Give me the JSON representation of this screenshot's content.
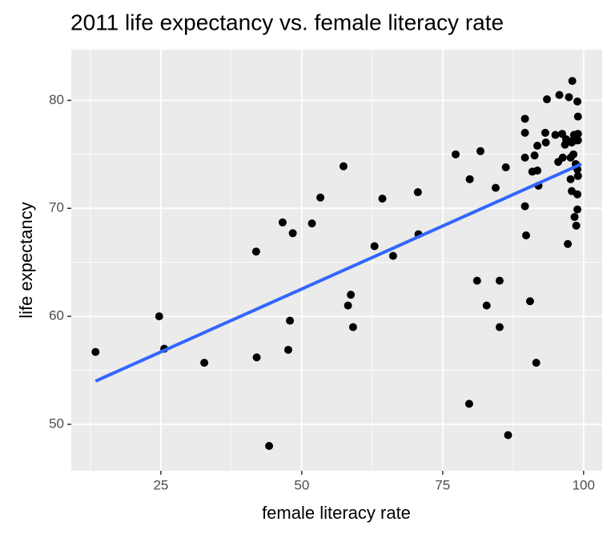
{
  "chart_data": {
    "type": "scatter",
    "title": "2011 life expectancy vs. female literacy rate",
    "x_label": "female literacy rate",
    "y_label": "life expectancy",
    "xlim": [
      9.1,
      103.3
    ],
    "ylim": [
      45.7,
      84.7
    ],
    "xticks": [
      25,
      50,
      75,
      100
    ],
    "yticks": [
      50,
      60,
      70,
      80
    ],
    "minor_xticks": [
      12.5,
      37.5,
      62.5,
      87.5
    ],
    "minor_yticks": [
      45,
      55,
      65,
      75
    ],
    "grid": true,
    "background": "#ebebeb",
    "color": "#000000",
    "x": [
      13.4,
      24.7,
      25.6,
      32.7,
      41.9,
      42.0,
      44.2,
      46.6,
      48.4,
      47.6,
      47.9,
      51.8,
      53.3,
      57.4,
      58.2,
      58.7,
      59.1,
      62.9,
      64.3,
      66.2,
      70.6,
      70.7,
      77.3,
      79.8,
      79.7,
      81.1,
      81.7,
      82.8,
      84.4,
      85.1,
      85.1,
      86.2,
      86.6,
      89.6,
      89.6,
      89.6,
      89.6,
      89.8,
      90.5,
      90.9,
      91.3,
      91.6,
      91.8,
      91.8,
      92.0,
      93.2,
      93.3,
      93.5,
      95.0,
      95.5,
      95.7,
      96.2,
      96.3,
      96.7,
      96.9,
      97.2,
      97.4,
      97.6,
      97.7,
      97.7,
      97.9,
      97.9,
      98.0,
      98.2,
      98.3,
      98.4,
      98.6,
      98.7,
      98.7,
      98.9,
      98.9,
      98.9,
      99.0,
      99.0,
      98.9,
      99.0,
      99.0
    ],
    "y": [
      56.7,
      60.0,
      57.0,
      55.7,
      66.0,
      56.2,
      48.0,
      68.7,
      67.7,
      56.9,
      59.6,
      68.6,
      71.0,
      73.9,
      61.0,
      62.0,
      59.0,
      66.5,
      70.9,
      65.6,
      71.5,
      67.6,
      75.0,
      72.7,
      51.9,
      63.3,
      75.3,
      61.0,
      71.9,
      59.0,
      63.3,
      73.8,
      49.0,
      78.3,
      77.0,
      74.7,
      70.2,
      67.5,
      61.4,
      73.4,
      74.9,
      55.7,
      75.8,
      73.5,
      72.1,
      77.0,
      76.1,
      80.1,
      76.8,
      74.3,
      80.5,
      76.9,
      74.7,
      75.9,
      76.4,
      66.7,
      80.3,
      76.2,
      74.7,
      72.7,
      71.6,
      76.1,
      81.8,
      75.0,
      76.8,
      69.2,
      74.1,
      68.4,
      76.3,
      71.3,
      69.9,
      79.9,
      78.5,
      76.3,
      73.6,
      73.0,
      76.9
    ],
    "fit": {
      "x": [
        13.4,
        99.6
      ],
      "y": [
        54.0,
        74.1
      ],
      "color": "#3366ff"
    }
  }
}
